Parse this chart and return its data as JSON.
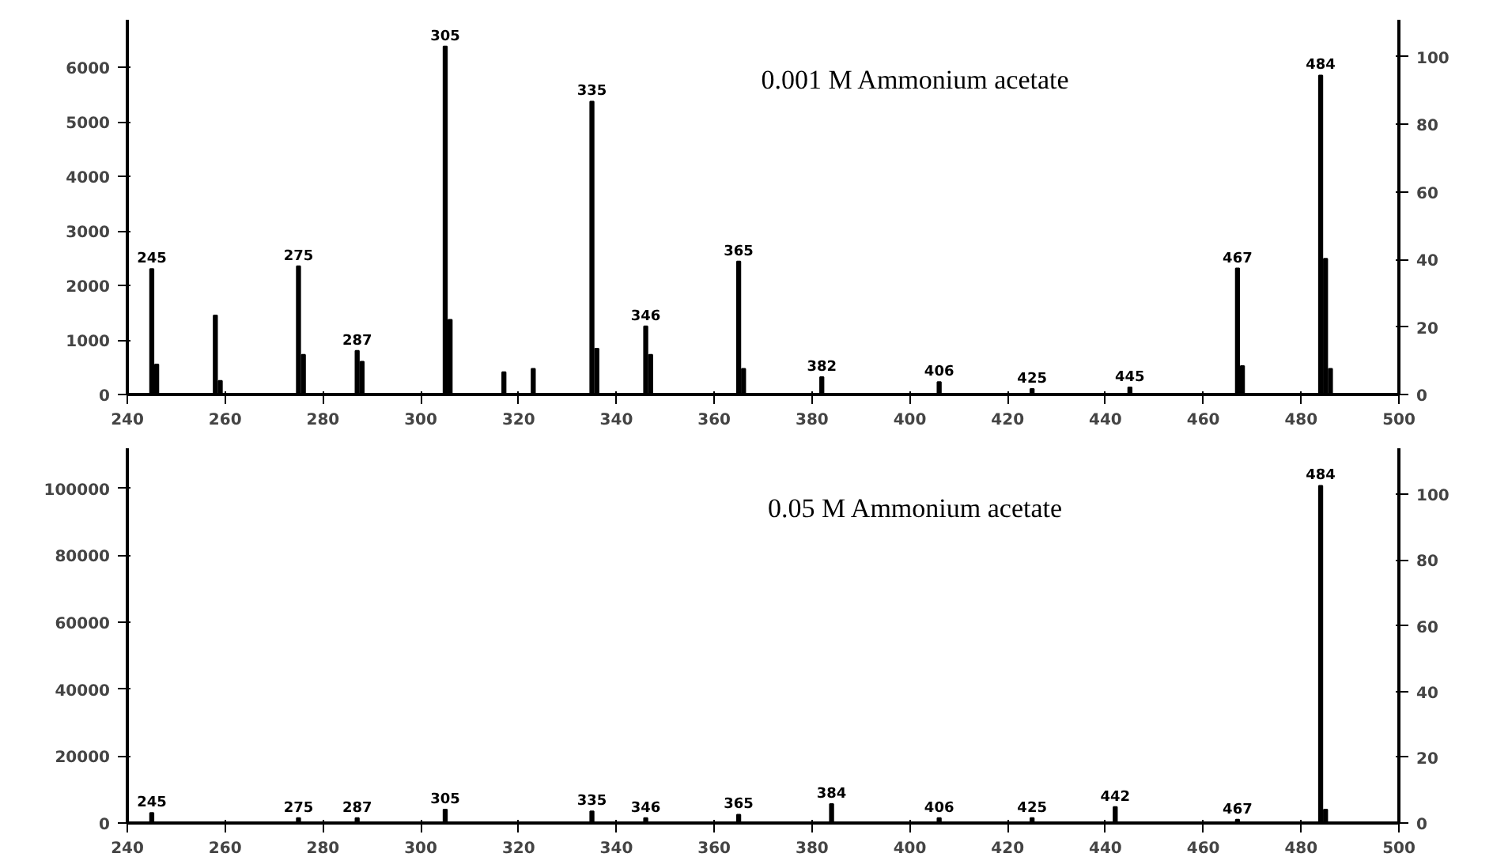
{
  "chart_data": [
    {
      "type": "bar",
      "title": "0.001 M Ammonium acetate",
      "color": "#000000",
      "x": [
        245,
        246,
        258,
        259,
        275,
        276,
        287,
        288,
        305,
        306,
        317,
        323,
        335,
        336,
        346,
        347,
        365,
        366,
        382,
        406,
        425,
        445,
        467,
        468,
        484,
        485,
        486
      ],
      "values": [
        2300,
        550,
        1450,
        250,
        2350,
        730,
        800,
        600,
        6380,
        1370,
        410,
        470,
        5370,
        840,
        1250,
        730,
        2440,
        470,
        320,
        230,
        100,
        130,
        2310,
        520,
        5850,
        2490,
        470
      ],
      "xlim": [
        240,
        500
      ],
      "xticks": [
        240,
        260,
        280,
        300,
        320,
        340,
        360,
        380,
        400,
        420,
        440,
        460,
        480,
        500
      ],
      "ylim": [
        0,
        6870
      ],
      "yticks": [
        0,
        1000,
        2000,
        3000,
        4000,
        5000,
        6000
      ],
      "y2lim": [
        0,
        111
      ],
      "y2ticks": [
        0,
        20,
        40,
        60,
        80,
        100
      ],
      "grid": false,
      "annotations": [
        {
          "text": "245",
          "x": 245,
          "y": 2300
        },
        {
          "text": "275",
          "x": 275,
          "y": 2350
        },
        {
          "text": "287",
          "x": 287,
          "y": 800
        },
        {
          "text": "305",
          "x": 305,
          "y": 6380
        },
        {
          "text": "335",
          "x": 335,
          "y": 5370
        },
        {
          "text": "346",
          "x": 346,
          "y": 1250
        },
        {
          "text": "365",
          "x": 365,
          "y": 2440
        },
        {
          "text": "382",
          "x": 382,
          "y": 320
        },
        {
          "text": "406",
          "x": 406,
          "y": 230
        },
        {
          "text": "425",
          "x": 425,
          "y": 100
        },
        {
          "text": "445",
          "x": 445,
          "y": 130
        },
        {
          "text": "467",
          "x": 467,
          "y": 2310
        },
        {
          "text": "484",
          "x": 484,
          "y": 5850
        }
      ]
    },
    {
      "type": "bar",
      "title": "0.05 M Ammonium acetate",
      "color": "#000000",
      "x": [
        245,
        275,
        287,
        305,
        335,
        346,
        365,
        384,
        406,
        425,
        442,
        467,
        484,
        485
      ],
      "values": [
        3000,
        1500,
        1500,
        4000,
        3500,
        1500,
        2500,
        5700,
        1500,
        1500,
        4800,
        1000,
        100800,
        4000
      ],
      "xlim": [
        240,
        500
      ],
      "xticks": [
        240,
        260,
        280,
        300,
        320,
        340,
        360,
        380,
        400,
        420,
        440,
        460,
        480,
        500
      ],
      "ylim": [
        0,
        112000
      ],
      "yticks": [
        0,
        20000,
        40000,
        60000,
        80000,
        100000
      ],
      "y2lim": [
        0,
        114
      ],
      "y2ticks": [
        0,
        20,
        40,
        60,
        80,
        100
      ],
      "grid": false,
      "annotations": [
        {
          "text": "245",
          "x": 245,
          "y": 3000
        },
        {
          "text": "275",
          "x": 275,
          "y": 1500
        },
        {
          "text": "287",
          "x": 287,
          "y": 1500
        },
        {
          "text": "305",
          "x": 305,
          "y": 4000
        },
        {
          "text": "335",
          "x": 335,
          "y": 3500
        },
        {
          "text": "346",
          "x": 346,
          "y": 1500
        },
        {
          "text": "365",
          "x": 365,
          "y": 2500
        },
        {
          "text": "384",
          "x": 384,
          "y": 5700
        },
        {
          "text": "406",
          "x": 406,
          "y": 1500
        },
        {
          "text": "425",
          "x": 425,
          "y": 1500
        },
        {
          "text": "442",
          "x": 442,
          "y": 4800
        },
        {
          "text": "467",
          "x": 467,
          "y": 1000
        },
        {
          "text": "484",
          "x": 484,
          "y": 100800
        }
      ]
    }
  ]
}
